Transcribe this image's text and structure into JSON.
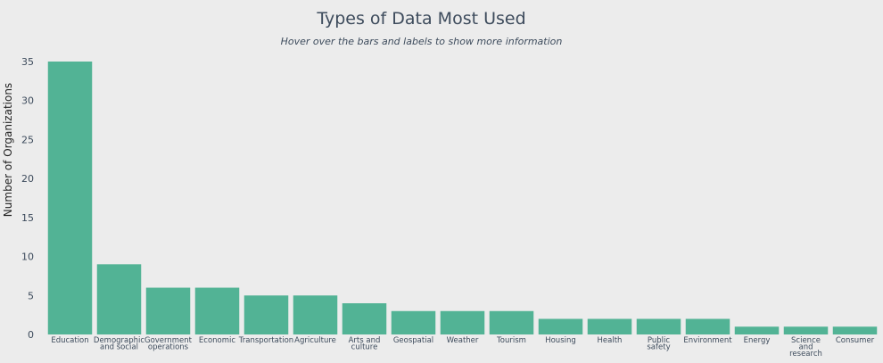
{
  "chart_data": {
    "type": "bar",
    "title": "Types of Data Most Used",
    "subtitle": "Hover over the bars and labels to show more information",
    "xlabel": "",
    "ylabel": "Number of Organizations",
    "ylim": [
      0,
      35
    ],
    "yticks": [
      0,
      5,
      10,
      15,
      20,
      25,
      30,
      35
    ],
    "grid": false,
    "bar_color": "#52b395",
    "categories": [
      [
        "Education"
      ],
      [
        "Demographic",
        "and social"
      ],
      [
        "Government",
        "operations"
      ],
      [
        "Economic"
      ],
      [
        "Transportation"
      ],
      [
        "Agriculture"
      ],
      [
        "Arts and",
        "culture"
      ],
      [
        "Geospatial"
      ],
      [
        "Weather"
      ],
      [
        "Tourism"
      ],
      [
        "Housing"
      ],
      [
        "Health"
      ],
      [
        "Public",
        "safety"
      ],
      [
        "Environment"
      ],
      [
        "Energy"
      ],
      [
        "Science",
        "and",
        "research"
      ],
      [
        "Consumer"
      ]
    ],
    "values": [
      35,
      9,
      6,
      6,
      5,
      5,
      4,
      3,
      3,
      3,
      2,
      2,
      2,
      2,
      1,
      1,
      1
    ]
  }
}
